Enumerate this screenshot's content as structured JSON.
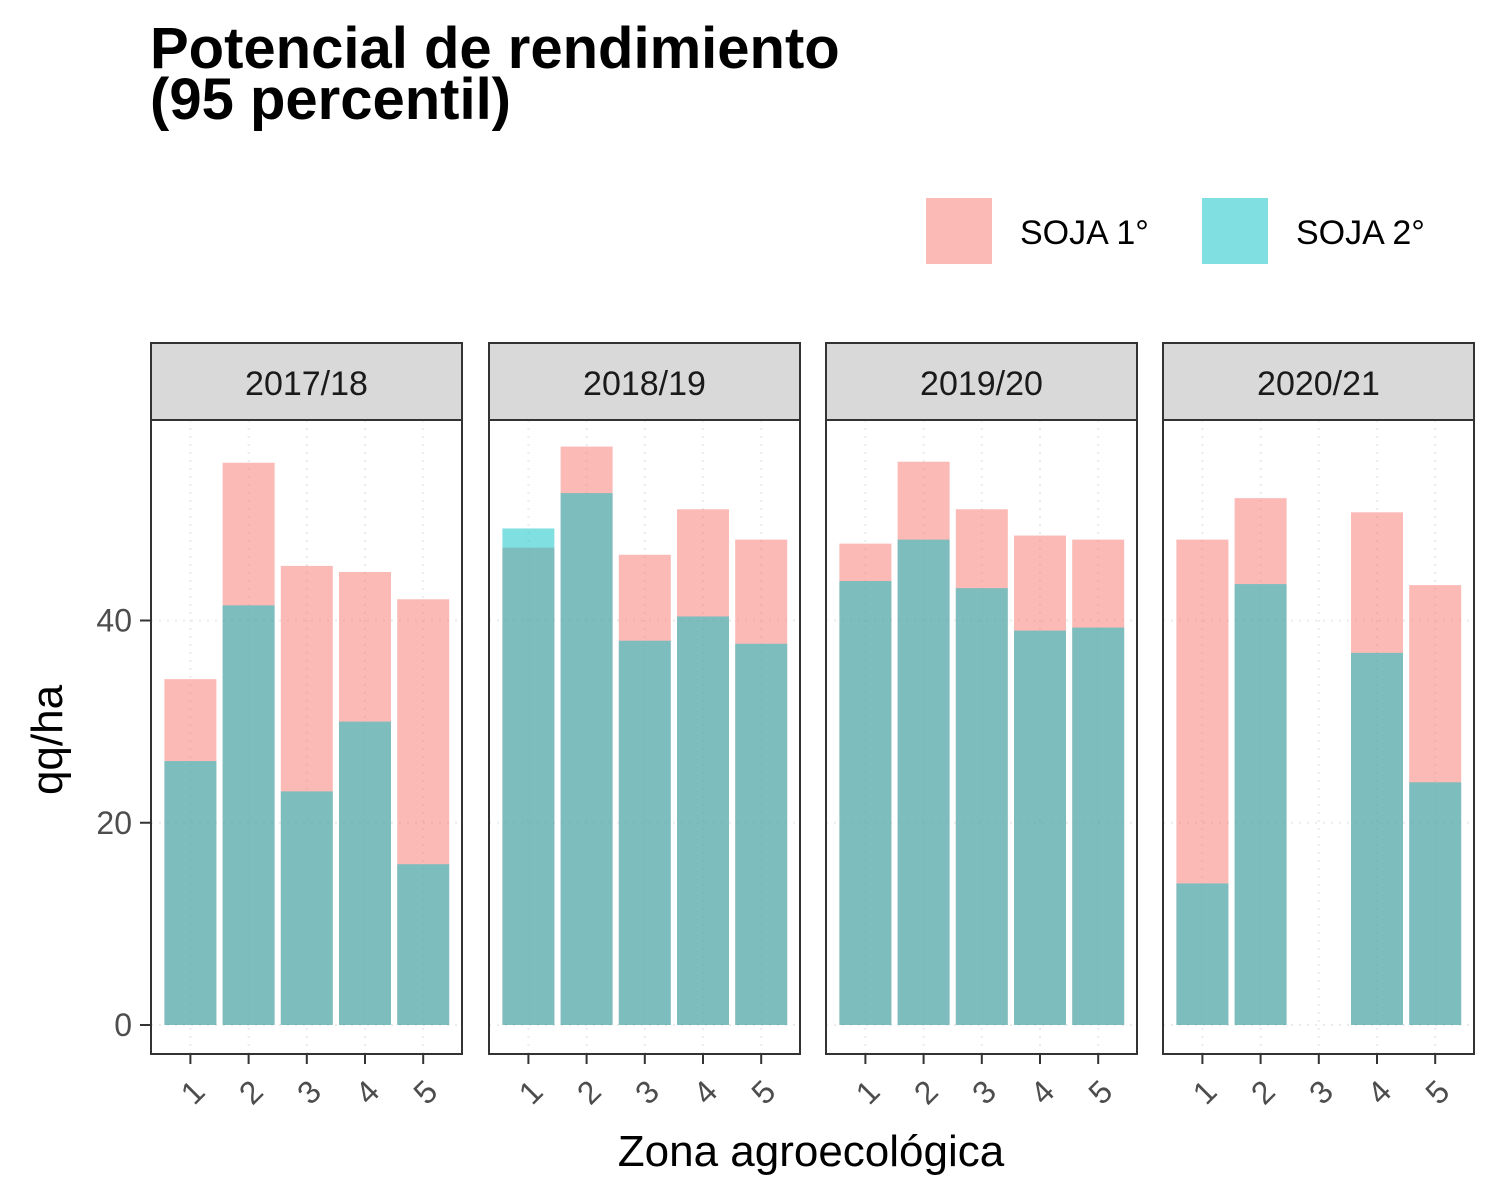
{
  "chart_data": {
    "type": "bar",
    "title": [
      "Potencial de rendimiento",
      "(95 percentil)"
    ],
    "xlabel": "Zona agroecológica",
    "ylabel": "qq/ha",
    "ylim": [
      0,
      60
    ],
    "yticks": [
      0,
      20,
      40
    ],
    "grid": true,
    "legend_position": "top-right",
    "categories": [
      "1",
      "2",
      "3",
      "4",
      "5"
    ],
    "series": [
      {
        "name": "SOJA 1°",
        "color": "#F8766D"
      },
      {
        "name": "SOJA 2°",
        "color": "#00BFC4"
      }
    ],
    "panels": [
      {
        "label": "2017/18",
        "values": {
          "SOJA 1°": [
            34.2,
            55.6,
            45.4,
            44.8,
            42.1
          ],
          "SOJA 2°": [
            26.1,
            41.5,
            23.1,
            30.0,
            15.9
          ]
        }
      },
      {
        "label": "2018/19",
        "values": {
          "SOJA 1°": [
            47.2,
            57.2,
            46.5,
            51.0,
            48.0
          ],
          "SOJA 2°": [
            49.1,
            52.6,
            38.0,
            40.4,
            37.7
          ]
        }
      },
      {
        "label": "2019/20",
        "values": {
          "SOJA 1°": [
            47.6,
            55.7,
            51.0,
            48.4,
            48.0
          ],
          "SOJA 2°": [
            43.9,
            48.0,
            43.2,
            39.0,
            39.3
          ]
        }
      },
      {
        "label": "2020/21",
        "values": {
          "SOJA 1°": [
            48.0,
            52.1,
            null,
            50.7,
            43.5
          ],
          "SOJA 2°": [
            14.0,
            43.6,
            null,
            36.8,
            24.0
          ]
        }
      }
    ]
  }
}
